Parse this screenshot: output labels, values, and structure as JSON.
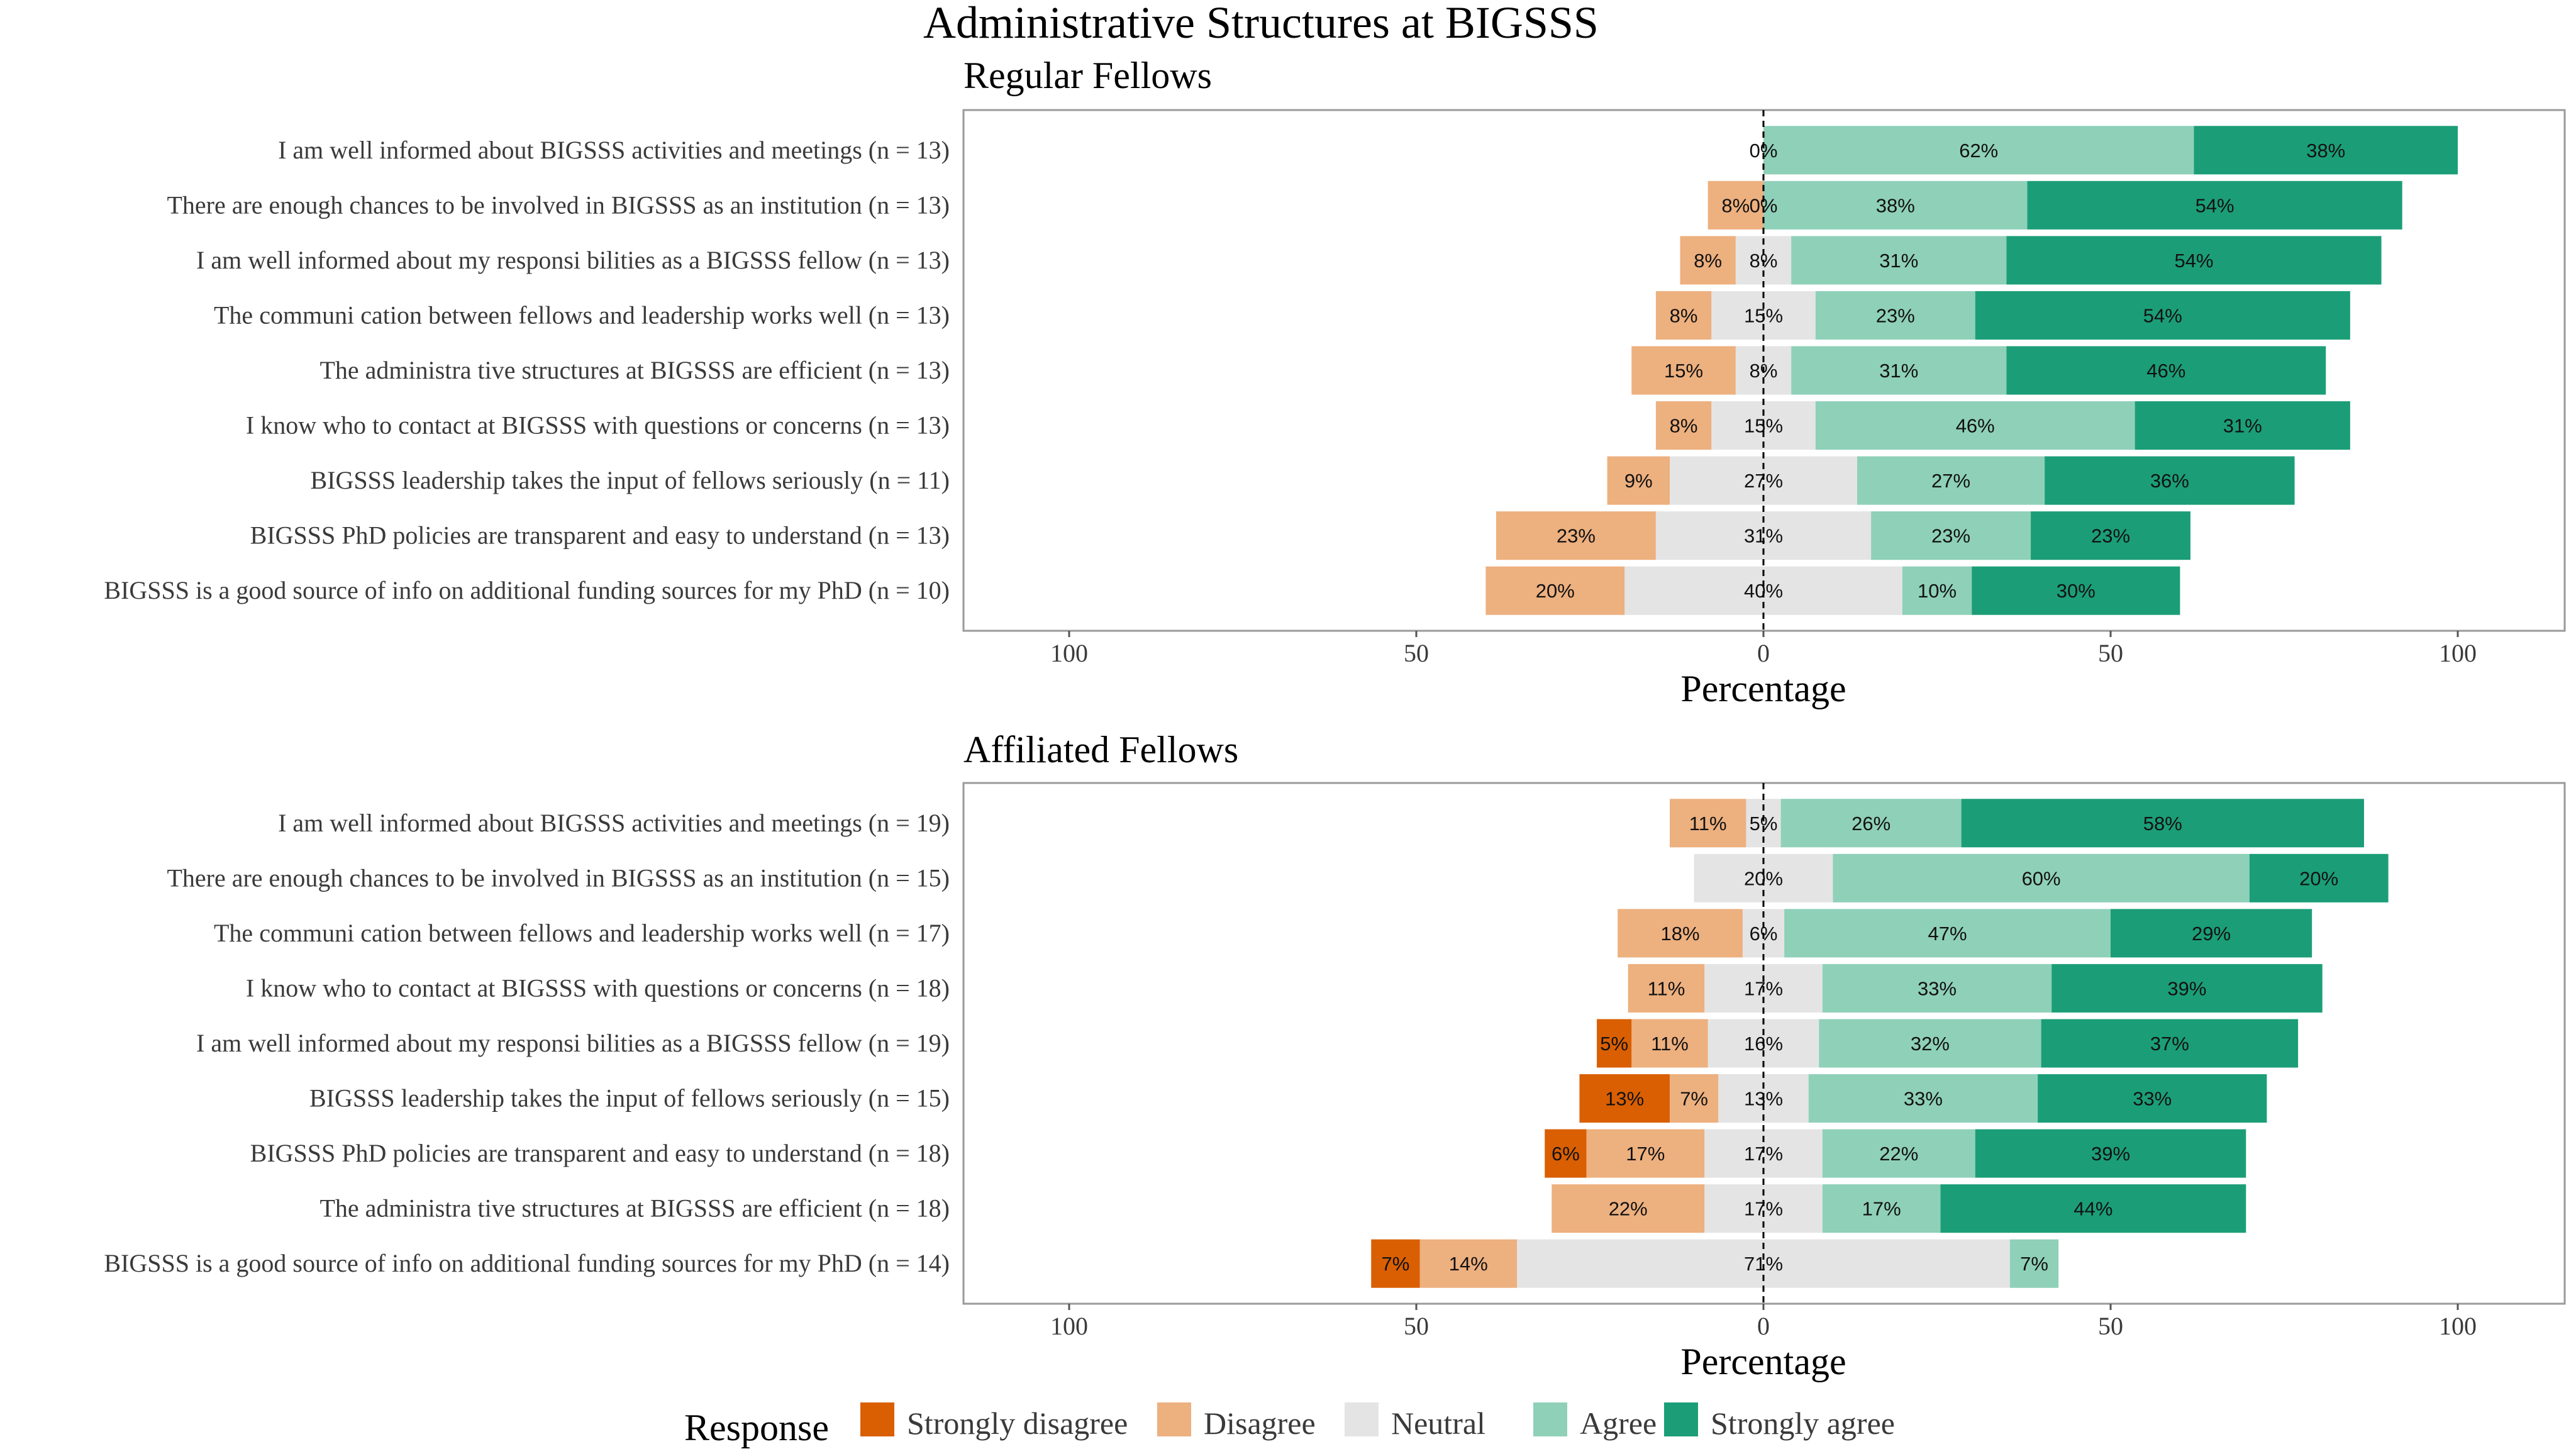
{
  "title": "Administrative Structures at BIGSSS",
  "colors": {
    "strongly_disagree": "#D95F02",
    "disagree": "#EDB07F",
    "neutral": "#E4E4E4",
    "agree": "#8FD0B9",
    "strongly_agree": "#1B9E77",
    "panel_border": "#9A9A9A",
    "zero_line": "#000000"
  },
  "legend": {
    "title": "Response",
    "items": [
      {
        "key": "strongly_disagree",
        "label": "Strongly disagree"
      },
      {
        "key": "disagree",
        "label": "Disagree"
      },
      {
        "key": "neutral",
        "label": "Neutral"
      },
      {
        "key": "agree",
        "label": "Agree"
      },
      {
        "key": "strongly_agree",
        "label": "Strongly agree"
      }
    ]
  },
  "chart_data": [
    {
      "type": "bar",
      "orientation": "horizontal-diverging",
      "title": "Regular Fellows",
      "xlabel": "Percentage",
      "xlim": [
        -100,
        100
      ],
      "xticks": [
        -100,
        -50,
        0,
        50,
        100
      ],
      "xtick_labels": [
        "100",
        "50",
        "0",
        "50",
        "100"
      ],
      "rows": [
        {
          "label": "I am well informed about BIGSSS activities and meetings (n = 13)",
          "sd": null,
          "d": null,
          "n": 0,
          "a": 62,
          "sa": 38
        },
        {
          "label": "There are enough chances to be involved in BIGSSS as an institution (n = 13)",
          "sd": null,
          "d": 8,
          "n": 0,
          "a": 38,
          "sa": 54
        },
        {
          "label": "I am well informed about my responsi bilities as a BIGSSS fellow (n = 13)",
          "sd": null,
          "d": 8,
          "n": 8,
          "a": 31,
          "sa": 54
        },
        {
          "label": "The communi cation between fellows and leadership works well (n = 13)",
          "sd": null,
          "d": 8,
          "n": 15,
          "a": 23,
          "sa": 54
        },
        {
          "label": "The administra tive structures at BIGSSS are efficient (n = 13)",
          "sd": null,
          "d": 15,
          "n": 8,
          "a": 31,
          "sa": 46
        },
        {
          "label": "I know who to contact at BIGSSS with questions or concerns (n = 13)",
          "sd": null,
          "d": 8,
          "n": 15,
          "a": 46,
          "sa": 31
        },
        {
          "label": "BIGSSS leadership takes the input of fellows seriously (n = 11)",
          "sd": null,
          "d": 9,
          "n": 27,
          "a": 27,
          "sa": 36
        },
        {
          "label": "BIGSSS PhD policies are transparent and easy to understand (n = 13)",
          "sd": null,
          "d": 23,
          "n": 31,
          "a": 23,
          "sa": 23
        },
        {
          "label": "BIGSSS is a good source of info on additional funding sources for my PhD (n = 10)",
          "sd": null,
          "d": 20,
          "n": 40,
          "a": 10,
          "sa": 30
        }
      ]
    },
    {
      "type": "bar",
      "orientation": "horizontal-diverging",
      "title": "Affiliated Fellows",
      "xlabel": "Percentage",
      "xlim": [
        -100,
        100
      ],
      "xticks": [
        -100,
        -50,
        0,
        50,
        100
      ],
      "xtick_labels": [
        "100",
        "50",
        "0",
        "50",
        "100"
      ],
      "rows": [
        {
          "label": "I am well informed about BIGSSS activities and meetings (n = 19)",
          "sd": null,
          "d": 11,
          "n": 5,
          "a": 26,
          "sa": 58
        },
        {
          "label": "There are enough chances to be involved in BIGSSS as an institution (n = 15)",
          "sd": null,
          "d": null,
          "n": 20,
          "a": 60,
          "sa": 20
        },
        {
          "label": "The communi cation between fellows and leadership works well (n = 17)",
          "sd": null,
          "d": 18,
          "n": 6,
          "a": 47,
          "sa": 29
        },
        {
          "label": "I know who to contact at BIGSSS with questions or concerns (n = 18)",
          "sd": null,
          "d": 11,
          "n": 17,
          "a": 33,
          "sa": 39
        },
        {
          "label": "I am well informed about my responsi bilities as a BIGSSS fellow (n = 19)",
          "sd": 5,
          "d": 11,
          "n": 16,
          "a": 32,
          "sa": 37
        },
        {
          "label": "BIGSSS leadership takes the input of fellows seriously (n = 15)",
          "sd": 13,
          "d": 7,
          "n": 13,
          "a": 33,
          "sa": 33
        },
        {
          "label": "BIGSSS PhD policies are transparent and easy to understand (n = 18)",
          "sd": 6,
          "d": 17,
          "n": 17,
          "a": 22,
          "sa": 39
        },
        {
          "label": "The administra tive structures at BIGSSS are efficient (n = 18)",
          "sd": null,
          "d": 22,
          "n": 17,
          "a": 17,
          "sa": 44
        },
        {
          "label": "BIGSSS is a good source of info on additional funding sources for my PhD (n = 14)",
          "sd": 7,
          "d": 14,
          "n": 71,
          "a": 7,
          "sa": null
        }
      ]
    }
  ]
}
